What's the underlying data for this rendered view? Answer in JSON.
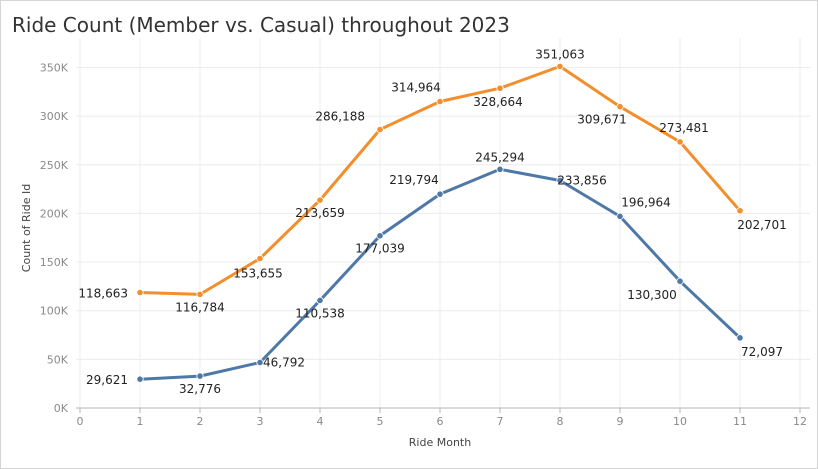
{
  "chart_data": {
    "type": "line",
    "title": "Ride Count (Member vs. Casual) throughout 2023",
    "xlabel": "Ride Month",
    "ylabel": "Count of Ride Id",
    "xlim": [
      0,
      12
    ],
    "ylim": [
      0,
      370000
    ],
    "x_ticks": [
      0,
      1,
      2,
      3,
      4,
      5,
      6,
      7,
      8,
      9,
      10,
      11,
      12
    ],
    "y_ticks": [
      {
        "value": 0,
        "label": "0K"
      },
      {
        "value": 50000,
        "label": "50K"
      },
      {
        "value": 100000,
        "label": "100K"
      },
      {
        "value": 150000,
        "label": "150K"
      },
      {
        "value": 200000,
        "label": "200K"
      },
      {
        "value": 250000,
        "label": "250K"
      },
      {
        "value": 300000,
        "label": "300K"
      },
      {
        "value": 350000,
        "label": "350K"
      }
    ],
    "x": [
      1,
      2,
      3,
      4,
      5,
      6,
      7,
      8,
      9,
      10,
      11
    ],
    "grid": true,
    "series": [
      {
        "color": "#f28e2b",
        "values": [
          118663,
          116784,
          153655,
          213659,
          286188,
          314964,
          328664,
          351063,
          309671,
          273481,
          202701
        ],
        "labels": [
          "118,663",
          "116,784",
          "153,655",
          "213,659",
          "286,188",
          "314,964",
          "328,664",
          "351,063",
          "309,671",
          "273,481",
          "202,701"
        ]
      },
      {
        "color": "#4e79a7",
        "values": [
          29621,
          32776,
          46792,
          110538,
          177039,
          219794,
          245294,
          233856,
          196964,
          130300,
          72097
        ],
        "labels": [
          "29,621",
          "32,776",
          "46,792",
          "110,538",
          "177,039",
          "219,794",
          "245,294",
          "233,856",
          "196,964",
          "130,300",
          "72,097"
        ]
      }
    ]
  }
}
